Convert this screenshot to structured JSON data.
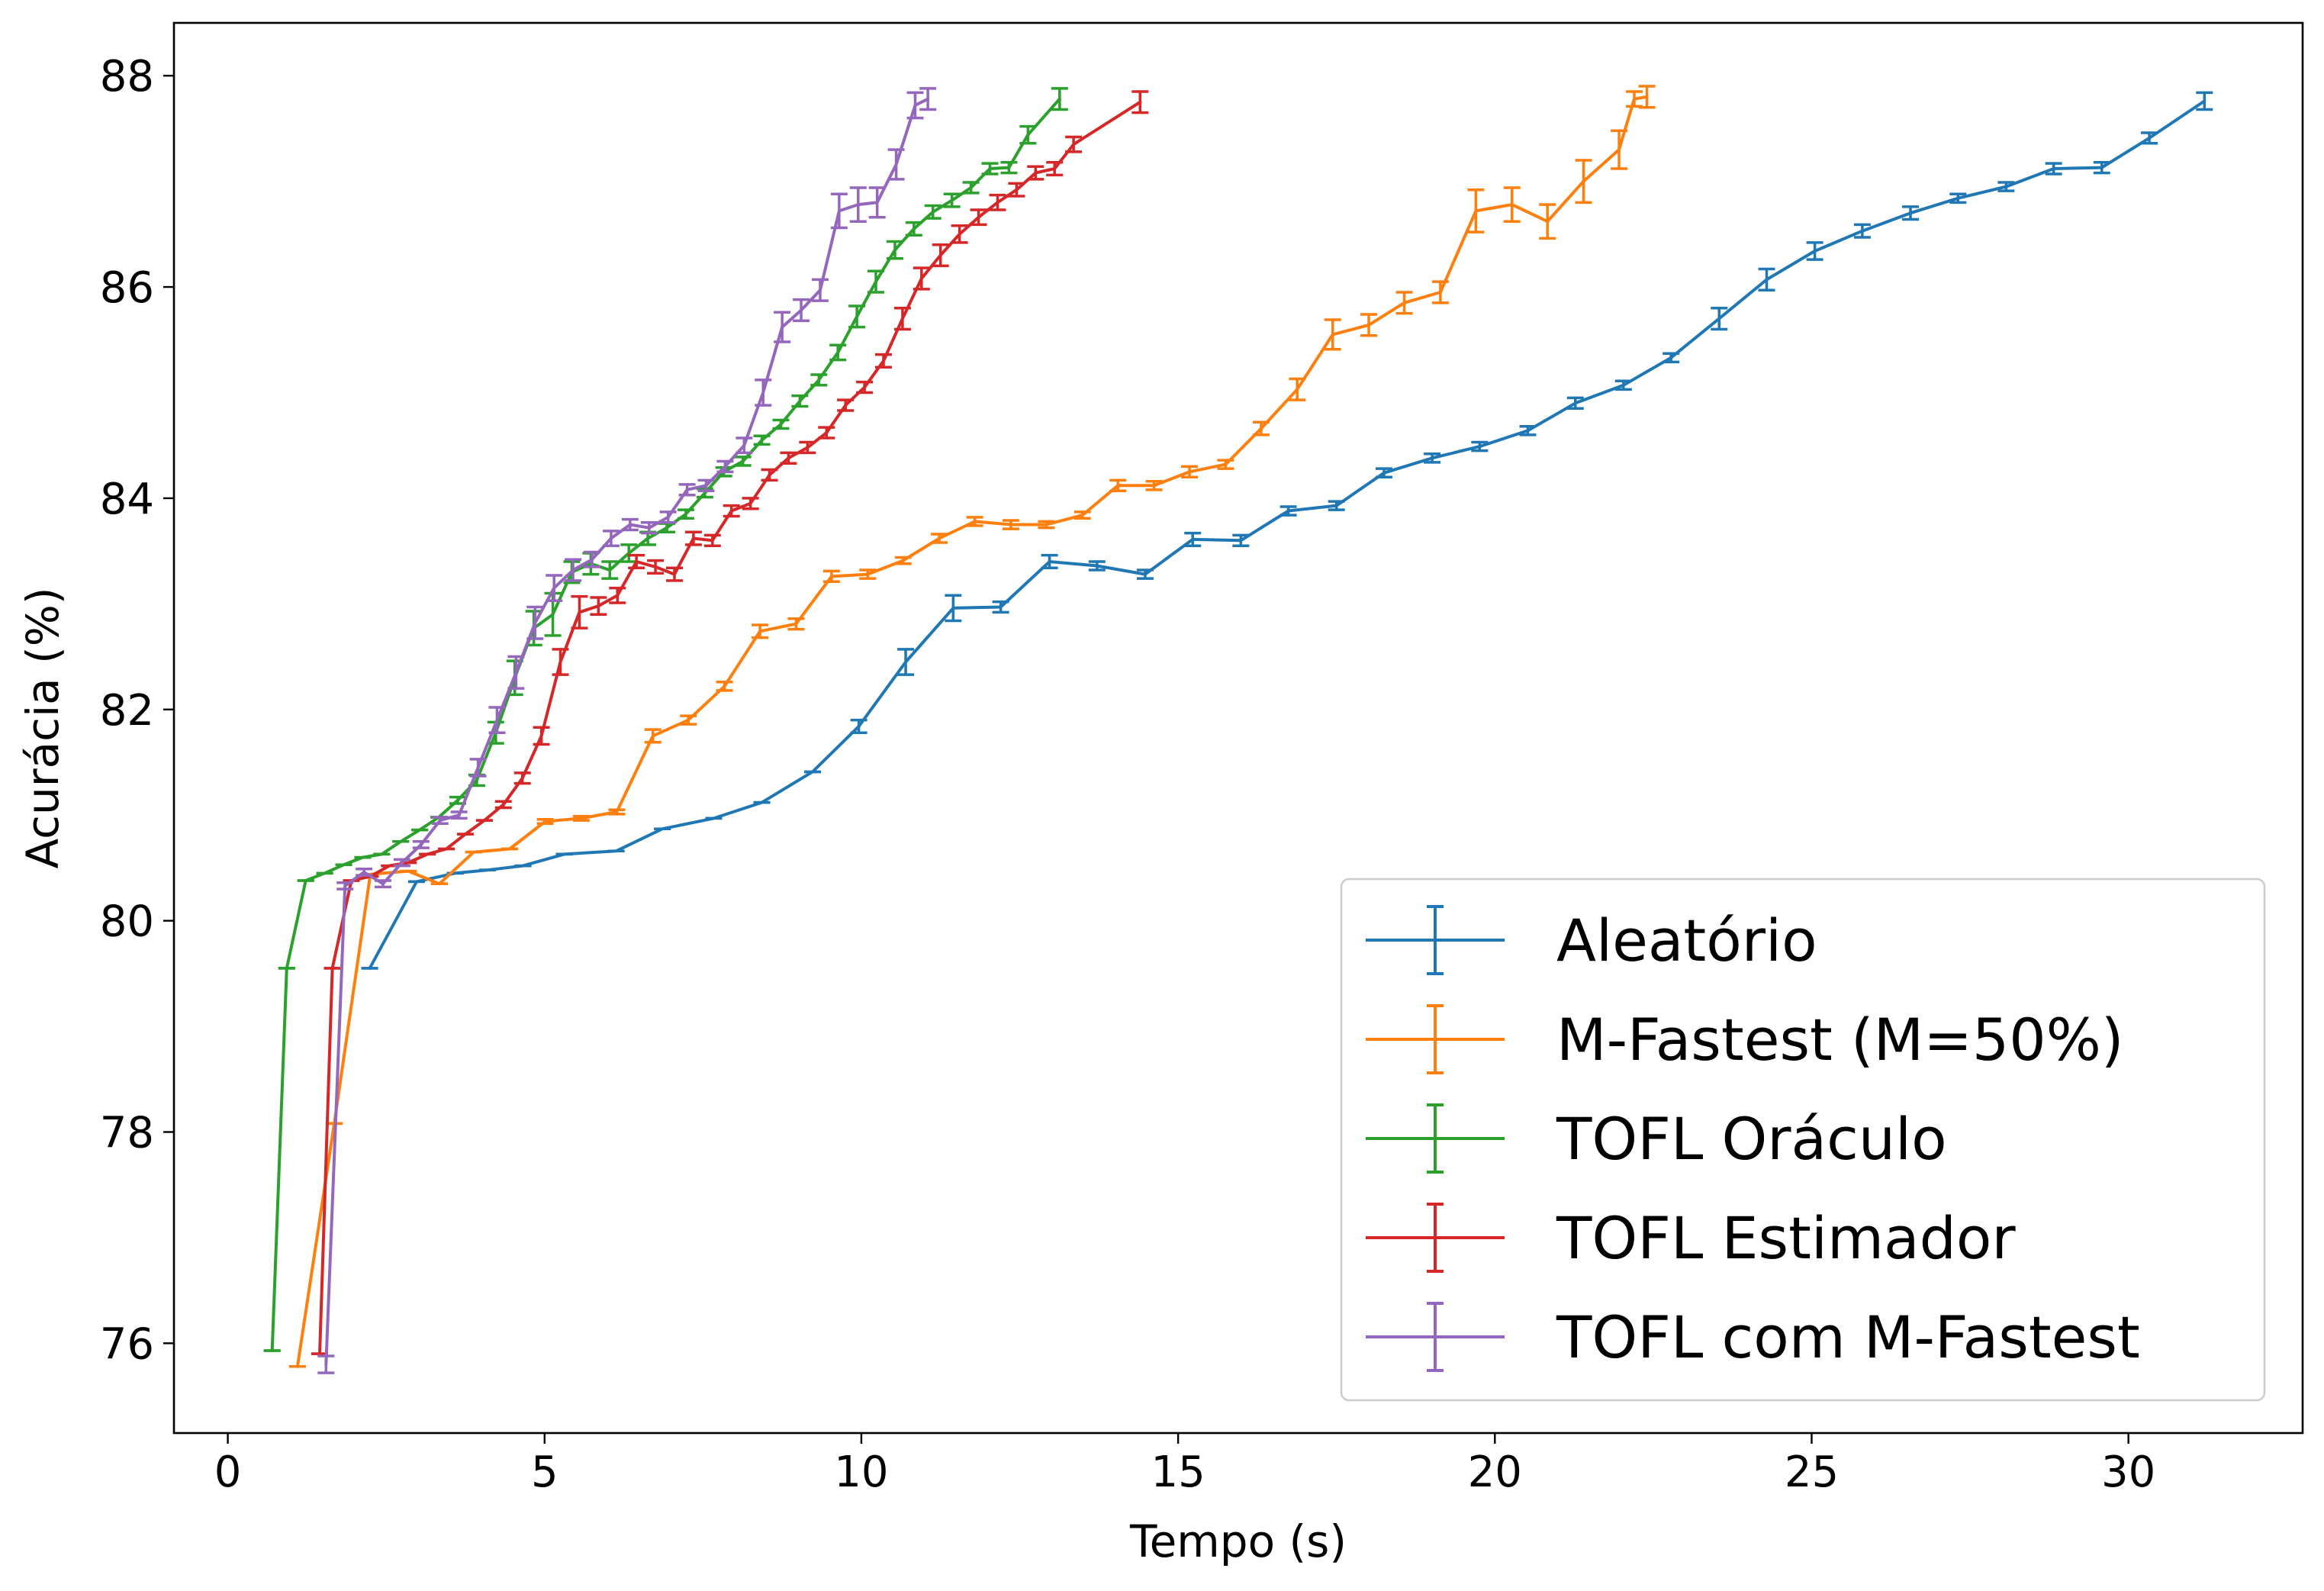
{
  "chart_data": {
    "type": "line",
    "title": "",
    "xlabel": "Tempo (s)",
    "ylabel": "Acurácia (%)",
    "xlim": [
      -0.85,
      32.75
    ],
    "ylim": [
      75.15,
      88.5
    ],
    "xticks": [
      0,
      5,
      10,
      15,
      20,
      25,
      30
    ],
    "yticks": [
      76,
      78,
      80,
      82,
      84,
      86,
      88
    ],
    "xtick_labels": [
      "0",
      "5",
      "10",
      "15",
      "20",
      "25",
      "30"
    ],
    "ytick_labels": [
      "76",
      "78",
      "80",
      "82",
      "84",
      "86",
      "88"
    ],
    "grid": false,
    "legend_position": "bottom-right",
    "error_bars": true,
    "series": [
      {
        "name": "Aleatório",
        "color": "#1f77b4",
        "points": [
          [
            2.24,
            79.55,
            0
          ],
          [
            2.98,
            80.37,
            0
          ],
          [
            3.59,
            80.45,
            0
          ],
          [
            4.1,
            80.48,
            0
          ],
          [
            4.66,
            80.52,
            0
          ],
          [
            5.31,
            80.63,
            0
          ],
          [
            6.13,
            80.66,
            0
          ],
          [
            6.86,
            80.87,
            0
          ],
          [
            7.67,
            80.97,
            0
          ],
          [
            8.43,
            81.12,
            0
          ],
          [
            9.23,
            81.41,
            0
          ],
          [
            9.96,
            81.84,
            0.06
          ],
          [
            10.7,
            82.45,
            0.12
          ],
          [
            11.45,
            82.96,
            0.12
          ],
          [
            12.2,
            82.97,
            0.05
          ],
          [
            12.97,
            83.4,
            0.06
          ],
          [
            13.72,
            83.36,
            0.04
          ],
          [
            14.48,
            83.28,
            0.04
          ],
          [
            15.23,
            83.61,
            0.06
          ],
          [
            15.99,
            83.6,
            0.05
          ],
          [
            16.74,
            83.88,
            0.04
          ],
          [
            17.5,
            83.93,
            0.04
          ],
          [
            18.25,
            84.24,
            0.04
          ],
          [
            19.01,
            84.38,
            0.04
          ],
          [
            19.76,
            84.49,
            0.04
          ],
          [
            20.52,
            84.64,
            0.04
          ],
          [
            21.27,
            84.9,
            0.05
          ],
          [
            22.03,
            85.07,
            0.04
          ],
          [
            22.78,
            85.33,
            0.04
          ],
          [
            23.54,
            85.7,
            0.1
          ],
          [
            24.29,
            86.07,
            0.1
          ],
          [
            25.05,
            86.34,
            0.08
          ],
          [
            25.8,
            86.53,
            0.06
          ],
          [
            26.56,
            86.7,
            0.06
          ],
          [
            27.31,
            86.84,
            0.04
          ],
          [
            28.07,
            86.95,
            0.04
          ],
          [
            28.82,
            87.12,
            0.05
          ],
          [
            29.58,
            87.13,
            0.05
          ],
          [
            30.33,
            87.41,
            0.05
          ],
          [
            31.2,
            87.76,
            0.08
          ]
        ]
      },
      {
        "name": "M-Fastest (M=50%)",
        "color": "#ff7f0e",
        "points": [
          [
            1.1,
            75.78,
            0
          ],
          [
            1.68,
            78.08,
            0
          ],
          [
            2.25,
            80.44,
            0
          ],
          [
            2.85,
            80.47,
            0
          ],
          [
            3.34,
            80.35,
            0
          ],
          [
            3.88,
            80.65,
            0
          ],
          [
            4.45,
            80.68,
            0
          ],
          [
            5.01,
            80.94,
            0.02
          ],
          [
            5.58,
            80.97,
            0.02
          ],
          [
            6.14,
            81.03,
            0.02
          ],
          [
            6.71,
            81.75,
            0.06
          ],
          [
            7.27,
            81.9,
            0.04
          ],
          [
            7.84,
            82.22,
            0.04
          ],
          [
            8.4,
            82.74,
            0.06
          ],
          [
            8.97,
            82.81,
            0.05
          ],
          [
            9.53,
            83.26,
            0.05
          ],
          [
            10.1,
            83.28,
            0.04
          ],
          [
            10.66,
            83.41,
            0.03
          ],
          [
            11.23,
            83.62,
            0.04
          ],
          [
            11.79,
            83.78,
            0.04
          ],
          [
            12.36,
            83.75,
            0.04
          ],
          [
            12.92,
            83.75,
            0.03
          ],
          [
            13.49,
            83.84,
            0.03
          ],
          [
            14.05,
            84.12,
            0.05
          ],
          [
            14.62,
            84.12,
            0.04
          ],
          [
            15.18,
            84.25,
            0.05
          ],
          [
            15.75,
            84.32,
            0.04
          ],
          [
            16.31,
            84.66,
            0.06
          ],
          [
            16.88,
            85.03,
            0.1
          ],
          [
            17.44,
            85.55,
            0.14
          ],
          [
            18.01,
            85.64,
            0.1
          ],
          [
            18.57,
            85.85,
            0.1
          ],
          [
            19.14,
            85.95,
            0.1
          ],
          [
            19.7,
            86.72,
            0.2
          ],
          [
            20.27,
            86.78,
            0.16
          ],
          [
            20.83,
            86.62,
            0.16
          ],
          [
            21.4,
            87.0,
            0.2
          ],
          [
            21.96,
            87.3,
            0.18
          ],
          [
            22.2,
            87.78,
            0.07
          ],
          [
            22.4,
            87.8,
            0.1
          ]
        ]
      },
      {
        "name": "TOFL Oráculo",
        "color": "#2ca02c",
        "points": [
          [
            0.7,
            75.93,
            0
          ],
          [
            0.93,
            79.55,
            0
          ],
          [
            1.23,
            80.38,
            0
          ],
          [
            1.53,
            80.45,
            0
          ],
          [
            1.83,
            80.53,
            0
          ],
          [
            2.13,
            80.6,
            0
          ],
          [
            2.43,
            80.63,
            0
          ],
          [
            2.73,
            80.75,
            0
          ],
          [
            3.03,
            80.86,
            0
          ],
          [
            3.33,
            80.98,
            0
          ],
          [
            3.63,
            81.14,
            0.03
          ],
          [
            3.93,
            81.33,
            0.05
          ],
          [
            4.23,
            81.78,
            0.1
          ],
          [
            4.53,
            82.3,
            0.16
          ],
          [
            4.83,
            82.77,
            0.16
          ],
          [
            5.13,
            82.9,
            0.2
          ],
          [
            5.43,
            83.3,
            0.1
          ],
          [
            5.73,
            83.38,
            0.1
          ],
          [
            6.03,
            83.32,
            0.08
          ],
          [
            6.33,
            83.48,
            0.08
          ],
          [
            6.63,
            83.62,
            0.06
          ],
          [
            6.93,
            83.72,
            0.04
          ],
          [
            7.23,
            83.85,
            0.04
          ],
          [
            7.53,
            84.05,
            0.04
          ],
          [
            7.83,
            84.25,
            0.04
          ],
          [
            8.13,
            84.35,
            0.04
          ],
          [
            8.43,
            84.55,
            0.04
          ],
          [
            8.73,
            84.7,
            0.04
          ],
          [
            9.03,
            84.92,
            0.05
          ],
          [
            9.33,
            85.12,
            0.05
          ],
          [
            9.63,
            85.38,
            0.07
          ],
          [
            9.93,
            85.72,
            0.1
          ],
          [
            10.23,
            86.05,
            0.1
          ],
          [
            10.53,
            86.35,
            0.08
          ],
          [
            10.83,
            86.55,
            0.06
          ],
          [
            11.13,
            86.71,
            0.06
          ],
          [
            11.43,
            86.82,
            0.06
          ],
          [
            11.73,
            86.94,
            0.05
          ],
          [
            12.03,
            87.12,
            0.05
          ],
          [
            12.33,
            87.13,
            0.05
          ],
          [
            12.63,
            87.44,
            0.08
          ],
          [
            13.13,
            87.78,
            0.1
          ]
        ]
      },
      {
        "name": "TOFL Estimador",
        "color": "#d62728",
        "points": [
          [
            1.45,
            75.9,
            0
          ],
          [
            1.65,
            79.55,
            0
          ],
          [
            1.95,
            80.38,
            0
          ],
          [
            2.25,
            80.42,
            0
          ],
          [
            2.55,
            80.52,
            0
          ],
          [
            2.85,
            80.55,
            0
          ],
          [
            3.15,
            80.63,
            0
          ],
          [
            3.45,
            80.68,
            0
          ],
          [
            3.75,
            80.82,
            0
          ],
          [
            4.05,
            80.95,
            0
          ],
          [
            4.35,
            81.1,
            0.03
          ],
          [
            4.65,
            81.35,
            0.05
          ],
          [
            4.95,
            81.75,
            0.08
          ],
          [
            5.25,
            82.45,
            0.12
          ],
          [
            5.55,
            82.92,
            0.15
          ],
          [
            5.85,
            82.98,
            0.08
          ],
          [
            6.15,
            83.08,
            0.07
          ],
          [
            6.45,
            83.4,
            0.06
          ],
          [
            6.75,
            83.35,
            0.06
          ],
          [
            7.05,
            83.28,
            0.06
          ],
          [
            7.35,
            83.62,
            0.06
          ],
          [
            7.65,
            83.6,
            0.05
          ],
          [
            7.95,
            83.88,
            0.05
          ],
          [
            8.25,
            83.95,
            0.05
          ],
          [
            8.55,
            84.22,
            0.05
          ],
          [
            8.85,
            84.38,
            0.05
          ],
          [
            9.15,
            84.48,
            0.05
          ],
          [
            9.45,
            84.62,
            0.05
          ],
          [
            9.75,
            84.88,
            0.05
          ],
          [
            10.05,
            85.05,
            0.05
          ],
          [
            10.35,
            85.3,
            0.06
          ],
          [
            10.65,
            85.7,
            0.1
          ],
          [
            10.95,
            86.08,
            0.1
          ],
          [
            11.25,
            86.3,
            0.1
          ],
          [
            11.55,
            86.5,
            0.08
          ],
          [
            11.85,
            86.66,
            0.07
          ],
          [
            12.15,
            86.8,
            0.07
          ],
          [
            12.45,
            86.92,
            0.06
          ],
          [
            12.75,
            87.08,
            0.06
          ],
          [
            13.05,
            87.12,
            0.06
          ],
          [
            13.35,
            87.35,
            0.07
          ],
          [
            14.4,
            87.75,
            0.1
          ]
        ]
      },
      {
        "name": "TOFL com M-Fastest",
        "color": "#9467bd",
        "points": [
          [
            1.55,
            75.8,
            0.08
          ],
          [
            1.85,
            80.33,
            0.03
          ],
          [
            2.15,
            80.46,
            0.03
          ],
          [
            2.45,
            80.35,
            0.03
          ],
          [
            2.75,
            80.55,
            0.03
          ],
          [
            3.05,
            80.72,
            0.03
          ],
          [
            3.35,
            80.95,
            0.03
          ],
          [
            3.65,
            81.0,
            0.03
          ],
          [
            3.95,
            81.45,
            0.08
          ],
          [
            4.25,
            81.9,
            0.12
          ],
          [
            4.55,
            82.35,
            0.15
          ],
          [
            4.85,
            82.82,
            0.15
          ],
          [
            5.15,
            83.15,
            0.12
          ],
          [
            5.45,
            83.32,
            0.1
          ],
          [
            5.75,
            83.42,
            0.07
          ],
          [
            6.05,
            83.62,
            0.07
          ],
          [
            6.35,
            83.75,
            0.05
          ],
          [
            6.65,
            83.72,
            0.05
          ],
          [
            6.95,
            83.82,
            0.05
          ],
          [
            7.25,
            84.08,
            0.05
          ],
          [
            7.55,
            84.12,
            0.05
          ],
          [
            7.85,
            84.3,
            0.05
          ],
          [
            8.15,
            84.5,
            0.07
          ],
          [
            8.45,
            85.0,
            0.12
          ],
          [
            8.75,
            85.62,
            0.14
          ],
          [
            9.05,
            85.78,
            0.1
          ],
          [
            9.35,
            85.97,
            0.1
          ],
          [
            9.65,
            86.72,
            0.16
          ],
          [
            9.95,
            86.78,
            0.16
          ],
          [
            10.25,
            86.8,
            0.14
          ],
          [
            10.55,
            87.16,
            0.14
          ],
          [
            10.85,
            87.72,
            0.12
          ],
          [
            11.05,
            87.78,
            0.1
          ]
        ]
      }
    ]
  }
}
